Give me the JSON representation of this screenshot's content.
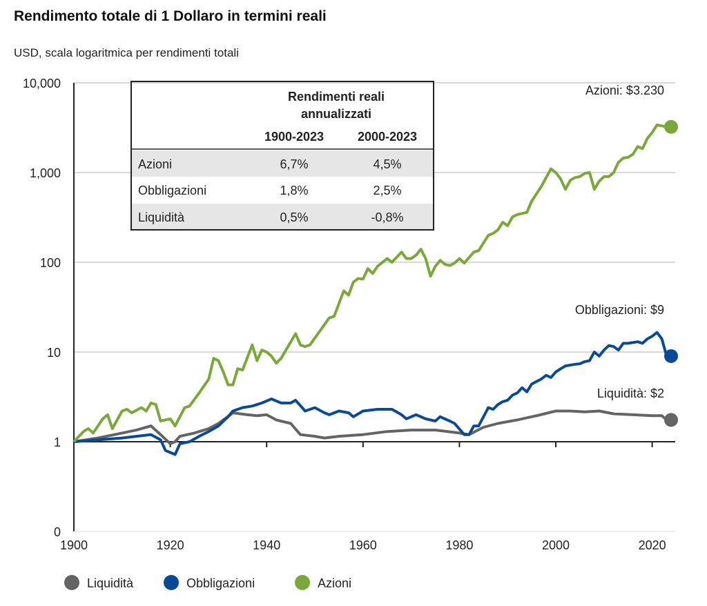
{
  "chart_data": {
    "type": "line",
    "title": "Rendimento totale di 1 Dollaro in termini reali",
    "subtitle": "USD, scala logaritmica per rendimenti totali",
    "xlabel": "",
    "ylabel": "",
    "y_scale": "log",
    "xlim": [
      1900,
      2024
    ],
    "ylim": [
      0.1,
      10000
    ],
    "x_ticks": [
      "1900",
      "1920",
      "1940",
      "1960",
      "1980",
      "2000",
      "2020"
    ],
    "y_ticks": [
      {
        "value": 0.1,
        "label": "0"
      },
      {
        "value": 1,
        "label": "1"
      },
      {
        "value": 10,
        "label": "10"
      },
      {
        "value": 100,
        "label": "100"
      },
      {
        "value": 1000,
        "label": "1,000"
      },
      {
        "value": 10000,
        "label": "10,000"
      }
    ],
    "grid": true,
    "legend_position": "bottom-left",
    "series": [
      {
        "name": "Liquidità",
        "color": "#646464",
        "end_label": "Liquidità: $2",
        "end_value": 1.75,
        "points": [
          [
            1900,
            1
          ],
          [
            1905,
            1.1
          ],
          [
            1910,
            1.25
          ],
          [
            1913,
            1.35
          ],
          [
            1916,
            1.5
          ],
          [
            1918,
            1.2
          ],
          [
            1920,
            0.95
          ],
          [
            1921,
            1.0
          ],
          [
            1922,
            1.15
          ],
          [
            1925,
            1.25
          ],
          [
            1928,
            1.4
          ],
          [
            1930,
            1.6
          ],
          [
            1933,
            2.1
          ],
          [
            1936,
            2.0
          ],
          [
            1938,
            1.95
          ],
          [
            1940,
            2.0
          ],
          [
            1942,
            1.75
          ],
          [
            1945,
            1.6
          ],
          [
            1947,
            1.2
          ],
          [
            1950,
            1.15
          ],
          [
            1952,
            1.1
          ],
          [
            1955,
            1.15
          ],
          [
            1960,
            1.2
          ],
          [
            1965,
            1.3
          ],
          [
            1970,
            1.35
          ],
          [
            1975,
            1.35
          ],
          [
            1980,
            1.25
          ],
          [
            1982,
            1.2
          ],
          [
            1985,
            1.45
          ],
          [
            1988,
            1.6
          ],
          [
            1992,
            1.75
          ],
          [
            1996,
            1.95
          ],
          [
            2000,
            2.2
          ],
          [
            2003,
            2.2
          ],
          [
            2006,
            2.15
          ],
          [
            2009,
            2.2
          ],
          [
            2012,
            2.05
          ],
          [
            2016,
            2.0
          ],
          [
            2020,
            1.95
          ],
          [
            2022,
            1.95
          ],
          [
            2023,
            1.75
          ]
        ]
      },
      {
        "name": "Obbligazioni",
        "color": "#0a4a94",
        "end_label": "Obbligazioni: $9",
        "end_value": 9,
        "points": [
          [
            1900,
            1
          ],
          [
            1905,
            1.05
          ],
          [
            1910,
            1.1
          ],
          [
            1913,
            1.15
          ],
          [
            1916,
            1.2
          ],
          [
            1918,
            1.05
          ],
          [
            1919,
            0.8
          ],
          [
            1921,
            0.72
          ],
          [
            1922,
            0.95
          ],
          [
            1924,
            1.0
          ],
          [
            1926,
            1.15
          ],
          [
            1928,
            1.3
          ],
          [
            1930,
            1.5
          ],
          [
            1932,
            1.9
          ],
          [
            1933,
            2.2
          ],
          [
            1935,
            2.4
          ],
          [
            1937,
            2.5
          ],
          [
            1939,
            2.7
          ],
          [
            1941,
            3.0
          ],
          [
            1943,
            2.7
          ],
          [
            1945,
            2.7
          ],
          [
            1946,
            2.9
          ],
          [
            1948,
            2.2
          ],
          [
            1950,
            2.4
          ],
          [
            1952,
            2.1
          ],
          [
            1953,
            2.0
          ],
          [
            1955,
            2.2
          ],
          [
            1957,
            2.1
          ],
          [
            1958,
            1.9
          ],
          [
            1960,
            2.2
          ],
          [
            1963,
            2.3
          ],
          [
            1966,
            2.3
          ],
          [
            1968,
            2.0
          ],
          [
            1969,
            1.8
          ],
          [
            1971,
            2.0
          ],
          [
            1973,
            1.8
          ],
          [
            1975,
            1.7
          ],
          [
            1976,
            1.9
          ],
          [
            1978,
            1.7
          ],
          [
            1979,
            1.6
          ],
          [
            1981,
            1.2
          ],
          [
            1982,
            1.2
          ],
          [
            1983,
            1.5
          ],
          [
            1984,
            1.5
          ],
          [
            1986,
            2.4
          ],
          [
            1987,
            2.3
          ],
          [
            1988,
            2.6
          ],
          [
            1989,
            2.8
          ],
          [
            1990,
            2.9
          ],
          [
            1991,
            3.3
          ],
          [
            1992,
            3.5
          ],
          [
            1993,
            4.0
          ],
          [
            1994,
            3.6
          ],
          [
            1995,
            4.4
          ],
          [
            1997,
            5
          ],
          [
            1998,
            5.5
          ],
          [
            1999,
            5.2
          ],
          [
            2000,
            6
          ],
          [
            2001,
            6.5
          ],
          [
            2002,
            7
          ],
          [
            2004,
            7.3
          ],
          [
            2005,
            7.4
          ],
          [
            2006,
            7.8
          ],
          [
            2007,
            8
          ],
          [
            2008,
            10
          ],
          [
            2009,
            9
          ],
          [
            2010,
            10.5
          ],
          [
            2011,
            11.8
          ],
          [
            2012,
            11.5
          ],
          [
            2013,
            10.5
          ],
          [
            2014,
            12.5
          ],
          [
            2015,
            12.5
          ],
          [
            2017,
            13
          ],
          [
            2018,
            12.5
          ],
          [
            2019,
            14
          ],
          [
            2020,
            15
          ],
          [
            2021,
            16.5
          ],
          [
            2022,
            14
          ],
          [
            2023,
            9
          ]
        ]
      },
      {
        "name": "Azioni",
        "color": "#7aa83a",
        "end_label": "Azioni: $3.230",
        "end_value": 3230,
        "points": [
          [
            1900,
            1
          ],
          [
            1902,
            1.3
          ],
          [
            1903,
            1.4
          ],
          [
            1904,
            1.25
          ],
          [
            1906,
            1.8
          ],
          [
            1907,
            2.0
          ],
          [
            1908,
            1.4
          ],
          [
            1910,
            2.2
          ],
          [
            1911,
            2.3
          ],
          [
            1912,
            2.1
          ],
          [
            1914,
            2.4
          ],
          [
            1915,
            2.2
          ],
          [
            1916,
            2.7
          ],
          [
            1917,
            2.6
          ],
          [
            1918,
            1.7
          ],
          [
            1920,
            1.8
          ],
          [
            1921,
            1.5
          ],
          [
            1923,
            2.4
          ],
          [
            1924,
            2.5
          ],
          [
            1926,
            3.5
          ],
          [
            1928,
            5
          ],
          [
            1929,
            8.5
          ],
          [
            1930,
            8
          ],
          [
            1931,
            6
          ],
          [
            1932,
            4.3
          ],
          [
            1933,
            4.3
          ],
          [
            1934,
            6.5
          ],
          [
            1935,
            6.3
          ],
          [
            1937,
            12
          ],
          [
            1938,
            8
          ],
          [
            1939,
            10.5
          ],
          [
            1940,
            10
          ],
          [
            1941,
            9
          ],
          [
            1942,
            7.5
          ],
          [
            1943,
            8.5
          ],
          [
            1944,
            10.5
          ],
          [
            1946,
            16
          ],
          [
            1947,
            12
          ],
          [
            1948,
            11.5
          ],
          [
            1949,
            12
          ],
          [
            1951,
            17
          ],
          [
            1953,
            24
          ],
          [
            1954,
            25
          ],
          [
            1956,
            48
          ],
          [
            1957,
            43
          ],
          [
            1958,
            60
          ],
          [
            1959,
            66
          ],
          [
            1960,
            65
          ],
          [
            1961,
            85
          ],
          [
            1962,
            75
          ],
          [
            1963,
            90
          ],
          [
            1965,
            110
          ],
          [
            1966,
            100
          ],
          [
            1968,
            130
          ],
          [
            1969,
            110
          ],
          [
            1970,
            110
          ],
          [
            1971,
            120
          ],
          [
            1972,
            140
          ],
          [
            1973,
            110
          ],
          [
            1974,
            70
          ],
          [
            1975,
            90
          ],
          [
            1976,
            105
          ],
          [
            1977,
            95
          ],
          [
            1978,
            92
          ],
          [
            1979,
            98
          ],
          [
            1980,
            110
          ],
          [
            1981,
            98
          ],
          [
            1983,
            130
          ],
          [
            1984,
            135
          ],
          [
            1986,
            200
          ],
          [
            1987,
            210
          ],
          [
            1988,
            230
          ],
          [
            1989,
            280
          ],
          [
            1990,
            255
          ],
          [
            1991,
            320
          ],
          [
            1992,
            340
          ],
          [
            1994,
            360
          ],
          [
            1995,
            480
          ],
          [
            1997,
            700
          ],
          [
            1999,
            1100
          ],
          [
            2000,
            1000
          ],
          [
            2001,
            850
          ],
          [
            2002,
            650
          ],
          [
            2003,
            820
          ],
          [
            2004,
            880
          ],
          [
            2005,
            900
          ],
          [
            2006,
            980
          ],
          [
            2007,
            1000
          ],
          [
            2008,
            650
          ],
          [
            2009,
            800
          ],
          [
            2010,
            900
          ],
          [
            2011,
            900
          ],
          [
            2012,
            1000
          ],
          [
            2013,
            1300
          ],
          [
            2014,
            1450
          ],
          [
            2015,
            1480
          ],
          [
            2016,
            1600
          ],
          [
            2017,
            1950
          ],
          [
            2018,
            1850
          ],
          [
            2019,
            2400
          ],
          [
            2020,
            2800
          ],
          [
            2021,
            3400
          ],
          [
            2023,
            3230
          ]
        ]
      }
    ],
    "table": {
      "header": "Rendimenti reali annualizzati",
      "header_line1": "Rendimenti reali",
      "header_line2": "annualizzati",
      "columns": [
        "1900-2023",
        "2000-2023"
      ],
      "rows": [
        {
          "label": "Azioni",
          "values": [
            "6,7%",
            "4,5%"
          ]
        },
        {
          "label": "Obbligazioni",
          "values": [
            "1,8%",
            "2,5%"
          ]
        },
        {
          "label": "Liquidità",
          "values": [
            "0,5%",
            "-0,8%"
          ]
        }
      ]
    }
  }
}
